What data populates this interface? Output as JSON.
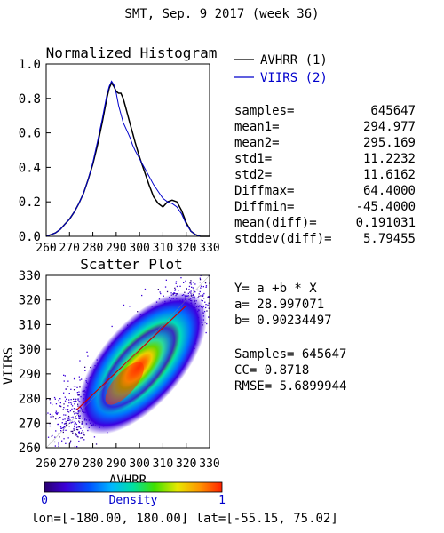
{
  "page_title": "SMT,  Sep. 9 2017 (week 36)",
  "footer": "lon=[-180.00, 180.00] lat=[-55.15, 75.02]",
  "chart_data": [
    {
      "type": "line",
      "title": "Normalized Histogram",
      "xlabel": "",
      "ylabel": "",
      "xlim": [
        260,
        330
      ],
      "ylim": [
        0,
        1.0
      ],
      "x_ticks": [
        "260",
        "270",
        "280",
        "290",
        "300",
        "310",
        "320",
        "330"
      ],
      "y_ticks": [
        "0.0",
        "0.2",
        "0.4",
        "0.6",
        "0.8",
        "1.0"
      ],
      "legend_position": "top-right",
      "series": [
        {
          "name": "AVHRR (1)",
          "color": "#000000",
          "x": [
            260,
            262,
            264,
            266,
            268,
            270,
            272,
            274,
            276,
            278,
            280,
            282,
            284,
            285,
            286,
            287,
            288,
            289,
            290,
            291,
            292,
            293,
            294,
            295,
            296,
            297,
            298,
            300,
            302,
            304,
            306,
            308,
            310,
            312,
            314,
            316,
            318,
            320,
            322,
            324,
            326,
            328,
            330
          ],
          "y": [
            0.0,
            0.01,
            0.02,
            0.04,
            0.07,
            0.1,
            0.14,
            0.19,
            0.25,
            0.33,
            0.42,
            0.53,
            0.66,
            0.73,
            0.8,
            0.86,
            0.89,
            0.87,
            0.84,
            0.83,
            0.83,
            0.8,
            0.75,
            0.7,
            0.65,
            0.6,
            0.55,
            0.46,
            0.38,
            0.3,
            0.23,
            0.19,
            0.17,
            0.2,
            0.21,
            0.2,
            0.15,
            0.08,
            0.03,
            0.01,
            0.0,
            0.0,
            0.0
          ]
        },
        {
          "name": "VIIRS (2)",
          "color": "#0000cc",
          "x": [
            260,
            262,
            264,
            266,
            268,
            270,
            272,
            274,
            276,
            278,
            280,
            282,
            284,
            285,
            286,
            287,
            288,
            289,
            290,
            291,
            292,
            293,
            294,
            295,
            296,
            297,
            298,
            300,
            302,
            304,
            306,
            308,
            310,
            312,
            314,
            316,
            318,
            320,
            322,
            324,
            326,
            328,
            330
          ],
          "y": [
            0.0,
            0.01,
            0.02,
            0.04,
            0.07,
            0.1,
            0.14,
            0.19,
            0.25,
            0.33,
            0.43,
            0.55,
            0.68,
            0.75,
            0.82,
            0.87,
            0.9,
            0.88,
            0.83,
            0.76,
            0.71,
            0.66,
            0.63,
            0.6,
            0.57,
            0.53,
            0.5,
            0.45,
            0.4,
            0.35,
            0.3,
            0.26,
            0.22,
            0.2,
            0.19,
            0.17,
            0.13,
            0.07,
            0.03,
            0.01,
            0.0,
            0.0,
            0.0
          ]
        }
      ]
    },
    {
      "type": "heatmap",
      "title": "Scatter Plot",
      "xlabel": "AVHRR",
      "ylabel": "VIIRS",
      "xlim": [
        260,
        330
      ],
      "ylim": [
        260,
        330
      ],
      "x_ticks": [
        "260",
        "270",
        "280",
        "290",
        "300",
        "310",
        "320",
        "330"
      ],
      "y_ticks": [
        "260",
        "270",
        "280",
        "290",
        "300",
        "310",
        "320",
        "330"
      ],
      "fit_line": {
        "color": "#cc0000",
        "x": [
          273,
          320
        ],
        "y": [
          275.33,
          317.74
        ]
      },
      "colorbar": {
        "label": "Density",
        "min_label": "0",
        "max_label": "1"
      }
    }
  ],
  "stats": [
    {
      "key": "samples=",
      "value": "645647"
    },
    {
      "key": "mean1=",
      "value": "294.977"
    },
    {
      "key": "mean2=",
      "value": "295.169"
    },
    {
      "key": "std1=",
      "value": "11.2232"
    },
    {
      "key": "std2=",
      "value": "11.6162"
    },
    {
      "key": "Diffmax=",
      "value": "64.4000"
    },
    {
      "key": "Diffmin=",
      "value": "-45.4000"
    },
    {
      "key": "mean(diff)=",
      "value": "0.191031"
    },
    {
      "key": "stddev(diff)=",
      "value": "5.79455"
    }
  ],
  "regression": {
    "equation": "Y= a +b * X",
    "a": "a= 28.997071",
    "b": "b= 0.90234497",
    "samples": "Samples= 645647",
    "cc": "CC=  0.8718",
    "rmse": "RMSE= 5.6899944"
  }
}
